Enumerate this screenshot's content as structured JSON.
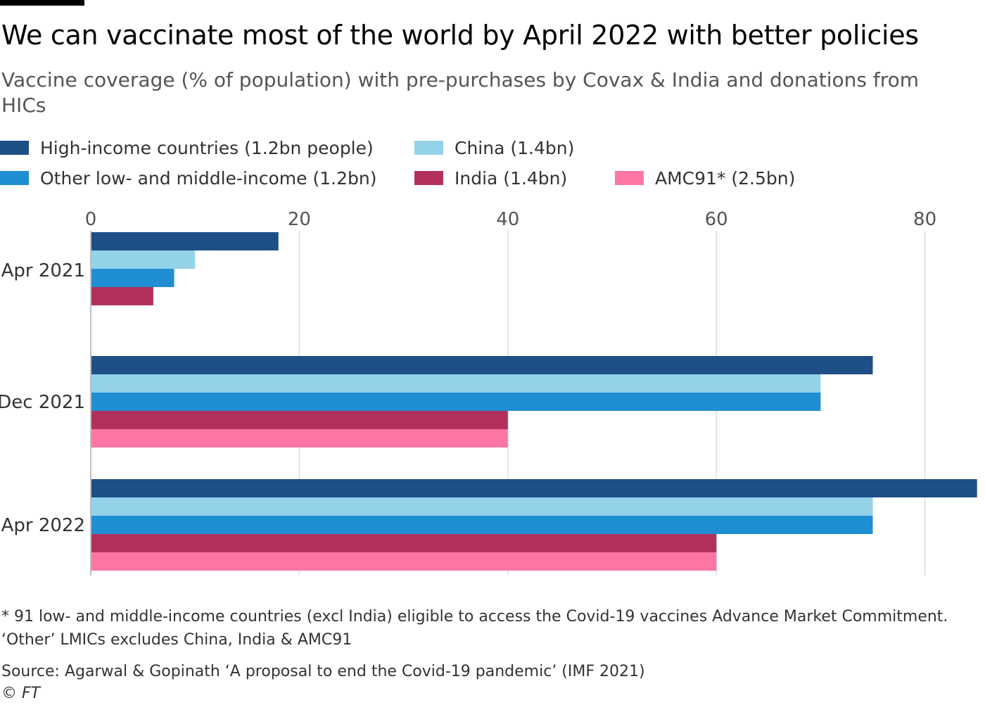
{
  "title": "We can vaccinate most of the world by April 2022 with better policies",
  "subtitle": "Vaccine coverage (% of population) with pre-purchases by Covax & India and donations from HICs",
  "legend": [
    {
      "label": "High-income countries (1.2bn people)",
      "color": "#1e4f86"
    },
    {
      "label": "China (1.4bn)",
      "color": "#93d2e9"
    },
    {
      "label": "Other low- and middle-income (1.2bn)",
      "color": "#1f8ed3"
    },
    {
      "label": "India (1.4bn)",
      "color": "#b2305c"
    },
    {
      "label": "AMC91* (2.5bn)",
      "color": "#fb77a1"
    }
  ],
  "chart_data": {
    "type": "bar",
    "orientation": "horizontal",
    "categories": [
      "Apr 2021",
      "Dec 2021",
      "Apr 2022"
    ],
    "series": [
      {
        "name": "High-income countries (1.2bn people)",
        "color": "#1e4f86",
        "values": [
          18,
          75,
          85
        ]
      },
      {
        "name": "China (1.4bn)",
        "color": "#93d2e9",
        "values": [
          10,
          70,
          75
        ]
      },
      {
        "name": "Other low- and middle-income (1.2bn)",
        "color": "#1f8ed3",
        "values": [
          8,
          70,
          75
        ]
      },
      {
        "name": "India (1.4bn)",
        "color": "#b2305c",
        "values": [
          6,
          40,
          60
        ]
      },
      {
        "name": "AMC91* (2.5bn)",
        "color": "#fb77a1",
        "values": [
          null,
          40,
          60
        ]
      }
    ],
    "xticks": [
      0,
      20,
      40,
      60,
      80
    ],
    "xlim": [
      0,
      85
    ],
    "xlabel": "",
    "ylabel": "",
    "grid": true
  },
  "notes": {
    "footnote_line1": "* 91 low- and middle-income countries (excl India) eligible to access the Covid-19 vaccines Advance Market Commitment.",
    "footnote_line2": "‘Other’ LMICs excludes China, India & AMC91",
    "source": "Source: Agarwal & Gopinath ‘A proposal to end the Covid-19 pandemic’ (IMF 2021)",
    "copyright": "© FT"
  }
}
